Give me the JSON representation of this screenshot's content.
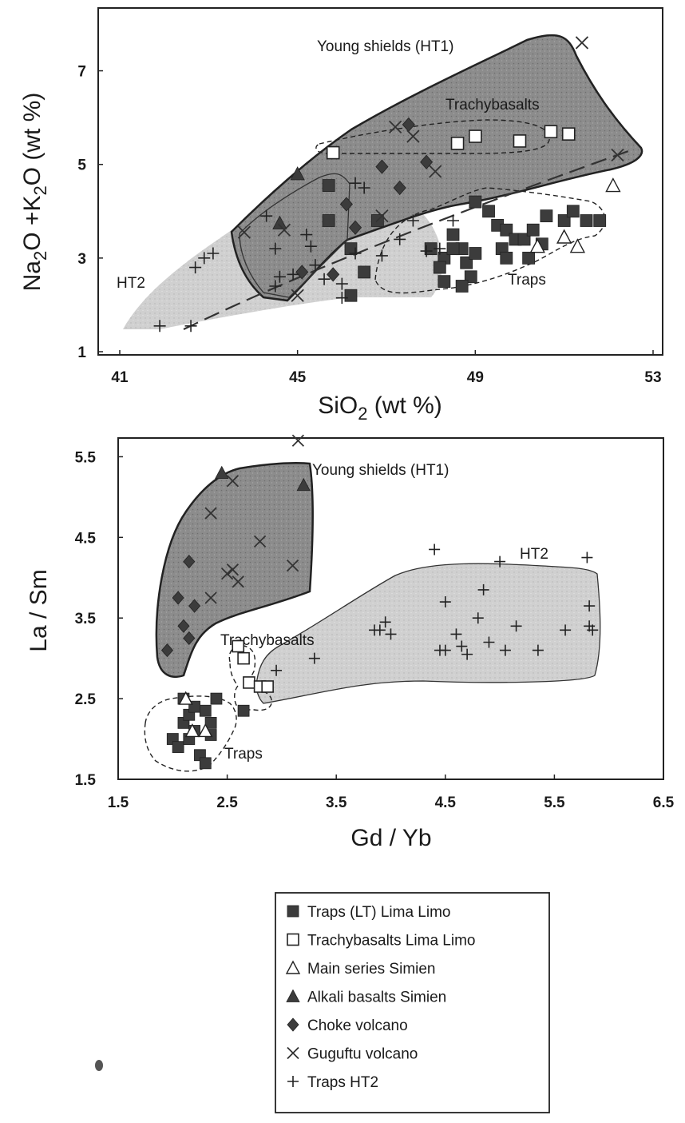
{
  "colors": {
    "ht1_fill": "#8e8e8e",
    "ht2_fill": "#cdcdcd",
    "marker_dark": "#3c3c3c",
    "stroke": "#222222"
  },
  "chart_data": [
    {
      "type": "scatter",
      "xlabel": "SiO2 (wt %)",
      "ylabel": "Na2O +K2O (wt %)",
      "xlim": [
        41,
        53
      ],
      "ylim": [
        1,
        8
      ],
      "xticks": [
        "41",
        "45",
        "49",
        "53"
      ],
      "yticks": [
        "1",
        "3",
        "5",
        "7"
      ],
      "grid": false,
      "regions": [
        {
          "label": "Young shields (HT1)",
          "fill": "dark"
        },
        {
          "label": "Trachybasalts",
          "fill": "dashed"
        },
        {
          "label": "HT2",
          "fill": "light"
        },
        {
          "label": "Traps",
          "fill": "dashed"
        }
      ],
      "series": [
        {
          "name": "Traps (LT) Lima Limo",
          "marker": "filled-square",
          "points": [
            [
              45.7,
              4.55
            ],
            [
              45.7,
              3.8
            ],
            [
              46.8,
              3.8
            ],
            [
              46.2,
              3.2
            ],
            [
              46.5,
              2.7
            ],
            [
              46.2,
              2.2
            ],
            [
              48.0,
              3.2
            ],
            [
              48.3,
              3.0
            ],
            [
              48.5,
              3.5
            ],
            [
              48.7,
              3.2
            ],
            [
              48.8,
              2.9
            ],
            [
              49.0,
              3.1
            ],
            [
              48.9,
              2.6
            ],
            [
              48.2,
              2.8
            ],
            [
              48.5,
              3.2
            ],
            [
              49.0,
              4.2
            ],
            [
              49.3,
              4.0
            ],
            [
              49.5,
              3.7
            ],
            [
              49.7,
              3.6
            ],
            [
              49.9,
              3.4
            ],
            [
              50.1,
              3.4
            ],
            [
              49.6,
              3.2
            ],
            [
              49.7,
              3.0
            ],
            [
              50.2,
              3.0
            ],
            [
              50.3,
              3.6
            ],
            [
              50.5,
              3.3
            ],
            [
              51.0,
              3.8
            ],
            [
              51.2,
              4.0
            ],
            [
              51.5,
              3.8
            ],
            [
              50.6,
              3.9
            ],
            [
              51.8,
              3.8
            ],
            [
              48.3,
              2.5
            ],
            [
              48.7,
              2.4
            ]
          ]
        },
        {
          "name": "Trachybasalts Lima Limo",
          "marker": "open-square",
          "points": [
            [
              45.8,
              5.25
            ],
            [
              48.6,
              5.45
            ],
            [
              49.0,
              5.6
            ],
            [
              50.0,
              5.5
            ],
            [
              50.7,
              5.7
            ],
            [
              51.1,
              5.65
            ]
          ]
        },
        {
          "name": "Main series Simien",
          "marker": "open-triangle",
          "points": [
            [
              50.4,
              3.25
            ],
            [
              51.0,
              3.45
            ],
            [
              51.3,
              3.25
            ],
            [
              52.1,
              4.55
            ]
          ]
        },
        {
          "name": "Alkali basalts Simien",
          "marker": "filled-triangle",
          "points": [
            [
              45.0,
              4.8
            ],
            [
              44.6,
              3.75
            ]
          ]
        },
        {
          "name": "Choke volcano",
          "marker": "filled-diamond",
          "points": [
            [
              45.1,
              2.7
            ],
            [
              45.8,
              2.65
            ],
            [
              46.1,
              4.15
            ],
            [
              46.3,
              3.65
            ],
            [
              46.9,
              4.95
            ],
            [
              47.3,
              4.5
            ],
            [
              47.5,
              5.85
            ],
            [
              47.9,
              5.05
            ]
          ]
        },
        {
          "name": "Guguftu volcano",
          "marker": "x",
          "points": [
            [
              43.8,
              3.55
            ],
            [
              44.7,
              3.6
            ],
            [
              45.0,
              2.2
            ],
            [
              46.9,
              3.9
            ],
            [
              47.2,
              5.8
            ],
            [
              47.6,
              5.6
            ],
            [
              48.1,
              4.85
            ],
            [
              51.4,
              7.6
            ],
            [
              52.2,
              5.2
            ]
          ]
        },
        {
          "name": "Traps HT2",
          "marker": "plus",
          "points": [
            [
              41.9,
              1.55
            ],
            [
              42.6,
              1.55
            ],
            [
              42.7,
              2.8
            ],
            [
              42.9,
              3.0
            ],
            [
              43.1,
              3.1
            ],
            [
              44.3,
              3.9
            ],
            [
              44.5,
              3.2
            ],
            [
              44.6,
              2.6
            ],
            [
              44.9,
              2.65
            ],
            [
              45.2,
              3.5
            ],
            [
              45.3,
              3.25
            ],
            [
              45.4,
              2.85
            ],
            [
              45.6,
              2.55
            ],
            [
              46.0,
              2.15
            ],
            [
              46.0,
              2.45
            ],
            [
              46.3,
              3.1
            ],
            [
              46.5,
              4.5
            ],
            [
              46.9,
              3.05
            ],
            [
              47.3,
              3.4
            ],
            [
              47.6,
              3.8
            ],
            [
              47.9,
              3.15
            ],
            [
              48.2,
              3.2
            ],
            [
              48.5,
              3.8
            ],
            [
              44.5,
              2.4
            ],
            [
              46.3,
              4.6
            ]
          ]
        }
      ]
    },
    {
      "type": "scatter",
      "xlabel": "Gd / Yb",
      "ylabel": "La / Sm",
      "xlim": [
        1.5,
        6.5
      ],
      "ylim": [
        1.5,
        6.0
      ],
      "xticks": [
        "1.5",
        "2.5",
        "3.5",
        "4.5",
        "5.5",
        "6.5"
      ],
      "yticks": [
        "1.5",
        "2.5",
        "3.5",
        "4.5",
        "5.5"
      ],
      "grid": false,
      "regions": [
        {
          "label": "Young shields (HT1)",
          "fill": "dark"
        },
        {
          "label": "Trachybasalts",
          "fill": "dashed"
        },
        {
          "label": "HT2",
          "fill": "light"
        },
        {
          "label": "Traps",
          "fill": "dashed"
        }
      ],
      "series": [
        {
          "name": "Traps (LT) Lima Limo",
          "marker": "filled-square",
          "points": [
            [
              2.0,
              2.0
            ],
            [
              2.05,
              1.9
            ],
            [
              2.1,
              2.2
            ],
            [
              2.15,
              2.3
            ],
            [
              2.2,
              2.1
            ],
            [
              2.25,
              1.8
            ],
            [
              2.3,
              2.35
            ],
            [
              2.35,
              2.2
            ],
            [
              2.4,
              2.5
            ],
            [
              2.1,
              2.5
            ],
            [
              2.2,
              2.4
            ],
            [
              2.3,
              1.7
            ],
            [
              2.15,
              2.0
            ],
            [
              2.35,
              2.05
            ],
            [
              2.65,
              2.35
            ]
          ]
        },
        {
          "name": "Trachybasalts Lima Limo",
          "marker": "open-square",
          "points": [
            [
              2.6,
              3.15
            ],
            [
              2.65,
              3.0
            ],
            [
              2.7,
              2.7
            ],
            [
              2.8,
              2.65
            ],
            [
              2.87,
              2.65
            ]
          ]
        },
        {
          "name": "Main series Simien",
          "marker": "open-triangle",
          "points": [
            [
              2.12,
              2.5
            ],
            [
              2.18,
              2.1
            ],
            [
              2.3,
              2.1
            ]
          ]
        },
        {
          "name": "Alkali basalts Simien",
          "marker": "filled-triangle",
          "points": [
            [
              2.45,
              5.3
            ],
            [
              3.2,
              5.15
            ]
          ]
        },
        {
          "name": "Choke volcano",
          "marker": "filled-diamond",
          "points": [
            [
              1.95,
              3.1
            ],
            [
              2.05,
              3.75
            ],
            [
              2.1,
              3.4
            ],
            [
              2.15,
              3.25
            ],
            [
              2.15,
              4.2
            ],
            [
              2.2,
              3.65
            ]
          ]
        },
        {
          "name": "Guguftu volcano",
          "marker": "x",
          "points": [
            [
              2.35,
              4.8
            ],
            [
              2.55,
              4.1
            ],
            [
              2.6,
              3.95
            ],
            [
              2.35,
              3.75
            ],
            [
              2.5,
              4.05
            ],
            [
              2.55,
              5.2
            ],
            [
              2.8,
              4.45
            ],
            [
              3.1,
              4.15
            ],
            [
              3.15,
              5.7
            ]
          ]
        },
        {
          "name": "Traps HT2",
          "marker": "plus",
          "points": [
            [
              2.95,
              2.85
            ],
            [
              3.3,
              3.0
            ],
            [
              3.85,
              3.35
            ],
            [
              3.9,
              3.35
            ],
            [
              4.0,
              3.3
            ],
            [
              3.95,
              3.45
            ],
            [
              4.4,
              4.35
            ],
            [
              4.45,
              3.1
            ],
            [
              4.5,
              3.1
            ],
            [
              4.5,
              3.7
            ],
            [
              4.6,
              3.3
            ],
            [
              4.65,
              3.15
            ],
            [
              4.7,
              3.05
            ],
            [
              4.8,
              3.5
            ],
            [
              4.85,
              3.85
            ],
            [
              4.9,
              3.2
            ],
            [
              5.0,
              4.2
            ],
            [
              5.05,
              3.1
            ],
            [
              5.15,
              3.4
            ],
            [
              5.35,
              3.1
            ],
            [
              5.6,
              3.35
            ],
            [
              5.8,
              4.25
            ],
            [
              5.82,
              3.65
            ],
            [
              5.82,
              3.4
            ],
            [
              5.85,
              3.35
            ]
          ]
        }
      ]
    }
  ],
  "legend": {
    "items": [
      {
        "label": "Traps (LT) Lima Limo",
        "marker": "filled-square"
      },
      {
        "label": "Trachybasalts Lima Limo",
        "marker": "open-square"
      },
      {
        "label": "Main series Simien",
        "marker": "open-triangle"
      },
      {
        "label": "Alkali basalts Simien",
        "marker": "filled-triangle"
      },
      {
        "label": "Choke volcano",
        "marker": "filled-diamond"
      },
      {
        "label": "Guguftu volcano",
        "marker": "x"
      },
      {
        "label": "Traps HT2",
        "marker": "plus"
      }
    ]
  }
}
